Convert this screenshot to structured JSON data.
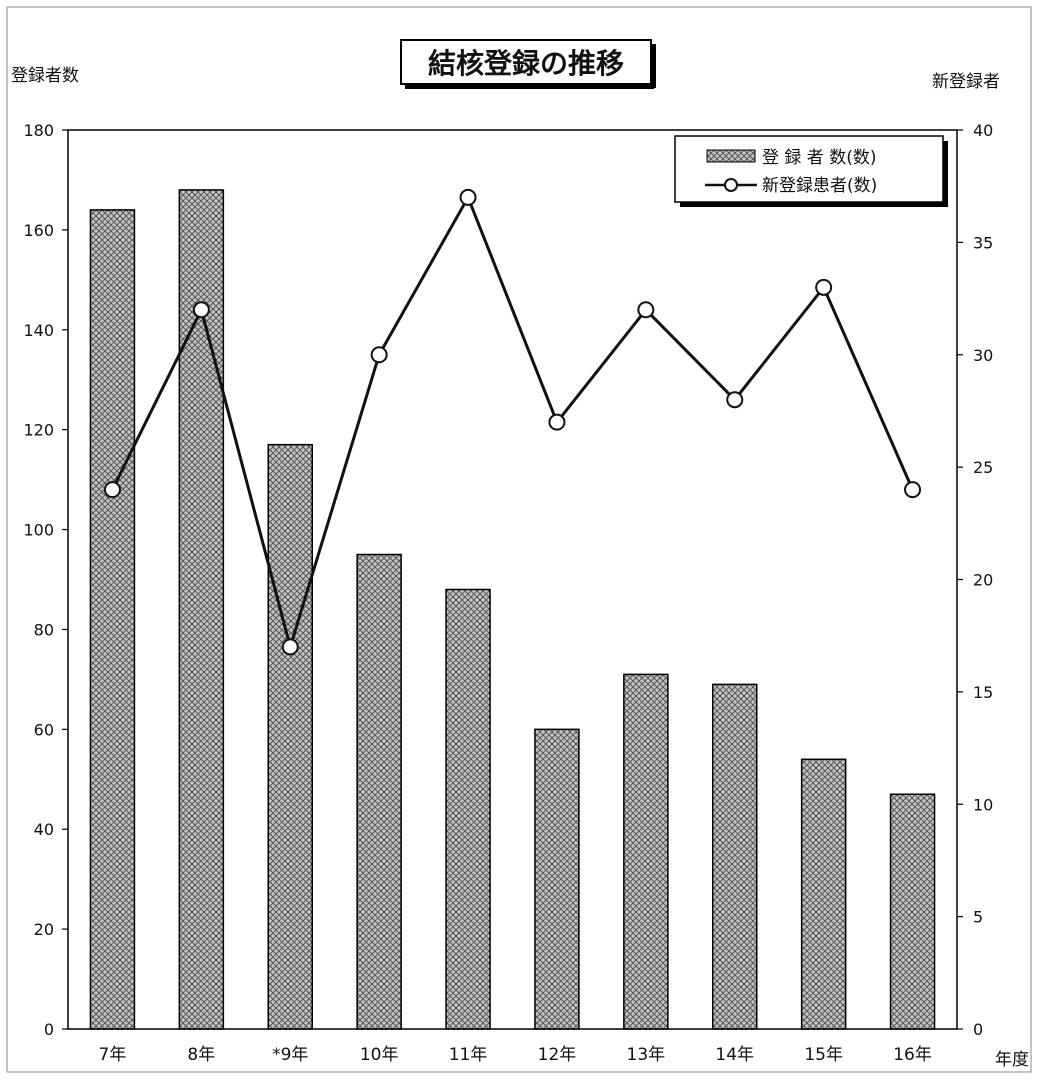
{
  "chart_data": {
    "type": "bar",
    "title": "結核登録の推移",
    "xlabel": "年度",
    "ylabel_left": "登録者数",
    "ylabel_right": "新登録者",
    "categories": [
      "7年",
      "8年",
      "*9年",
      "10年",
      "11年",
      "12年",
      "13年",
      "14年",
      "15年",
      "16年"
    ],
    "y_left": {
      "range": [
        0,
        180
      ],
      "ticks": [
        "0",
        "20",
        "40",
        "60",
        "80",
        "100",
        "120",
        "140",
        "160",
        "180"
      ]
    },
    "y_right": {
      "range": [
        0,
        40
      ],
      "ticks": [
        "0",
        "5",
        "10",
        "15",
        "20",
        "25",
        "30",
        "35",
        "40"
      ]
    },
    "grid": false,
    "legend_position": "top-right",
    "series": [
      {
        "name": "登 録 者 数(数)",
        "type": "bar",
        "axis": "left",
        "values": [
          164,
          168,
          117,
          95,
          88,
          60,
          71,
          69,
          54,
          47
        ]
      },
      {
        "name": "新登録患者(数)",
        "type": "line",
        "axis": "right",
        "marker": "open-circle",
        "values": [
          24,
          32,
          17,
          30,
          37,
          27,
          32,
          28,
          33,
          24
        ]
      }
    ],
    "colors": {
      "bar_fill": "#bdbdbd",
      "bar_pattern": "#5a5a5a",
      "line": "#111111",
      "marker_fill": "#ffffff"
    }
  }
}
